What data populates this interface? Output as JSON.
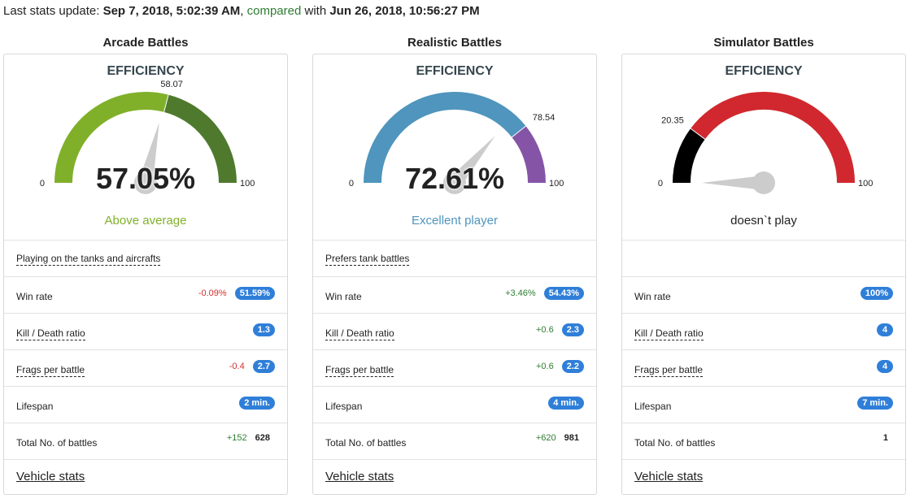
{
  "header": {
    "prefix": "Last stats update: ",
    "update_date": "Sep 7, 2018, 5:02:39 AM",
    "comma": ", ",
    "compared": "compared",
    "with": " with ",
    "compare_date": "Jun 26, 2018, 10:56:27 PM"
  },
  "labels": {
    "efficiency": "EFFICIENCY",
    "win_rate": "Win rate",
    "kd": "Kill / Death ratio",
    "frags": "Frags per battle",
    "lifespan": "Lifespan",
    "battles": "Total No. of battles",
    "vehicle_stats": "Vehicle stats"
  },
  "colors": {
    "badge": "#2f7fd9",
    "positive": "#2e7d32",
    "negative": "#d32f2f"
  },
  "modes": [
    {
      "title": "Arcade Battles",
      "gauge": {
        "min": "0",
        "max": "100",
        "marker": 58.07,
        "marker_label": "58.07",
        "needle": 57.05,
        "fill_color": "#80b02a",
        "rest_color": "#4f7a2e"
      },
      "value": "57.05%",
      "verdict": "Above average",
      "verdict_color": "#80b02a",
      "preference": "Playing on the tanks and aircrafts",
      "win_rate": {
        "delta": "-0.09%",
        "value": "51.59%"
      },
      "kd": {
        "delta": "",
        "value": "1.3"
      },
      "frags": {
        "delta": "-0.4",
        "value": "2.7"
      },
      "lifespan": {
        "value": "2 min."
      },
      "battles": {
        "delta": "+152",
        "value": "628"
      }
    },
    {
      "title": "Realistic Battles",
      "gauge": {
        "min": "0",
        "max": "100",
        "marker": 78.54,
        "marker_label": "78.54",
        "needle": 72.61,
        "fill_color": "#4f95bd",
        "rest_color": "#8654a6"
      },
      "value": "72.61%",
      "verdict": "Excellent player",
      "verdict_color": "#4f95bd",
      "preference": "Prefers tank battles",
      "win_rate": {
        "delta": "+3.46%",
        "value": "54.43%"
      },
      "kd": {
        "delta": "+0.6",
        "value": "2.3"
      },
      "frags": {
        "delta": "+0.6",
        "value": "2.2"
      },
      "lifespan": {
        "value": "4 min."
      },
      "battles": {
        "delta": "+620",
        "value": "981"
      }
    },
    {
      "title": "Simulator Battles",
      "gauge": {
        "min": "0",
        "max": "100",
        "marker": 20.35,
        "marker_label": "20.35",
        "needle": 0,
        "fill_color": "#000000",
        "rest_color": "#d0282e"
      },
      "value": "",
      "verdict": "doesn`t play",
      "verdict_color": "#222222",
      "preference": "",
      "win_rate": {
        "delta": "",
        "value": "100%"
      },
      "kd": {
        "delta": "",
        "value": "4"
      },
      "frags": {
        "delta": "",
        "value": "4"
      },
      "lifespan": {
        "value": "7 min."
      },
      "battles": {
        "delta": "",
        "value": "1"
      }
    }
  ]
}
